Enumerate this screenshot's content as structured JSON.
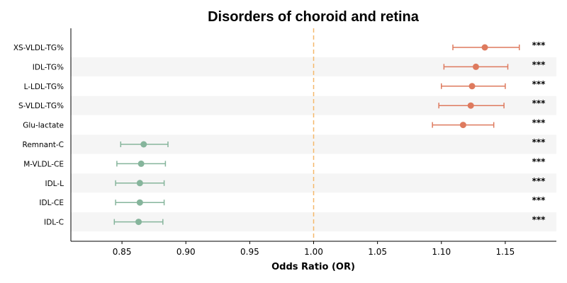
{
  "chart_data": {
    "type": "forest",
    "title": "Disorders of choroid and retina",
    "xlabel": "Odds Ratio (OR)",
    "xlim": [
      0.81,
      1.19
    ],
    "xticks": [
      "0.85",
      "0.90",
      "0.95",
      "1.00",
      "1.05",
      "1.10",
      "1.15"
    ],
    "reference_line": 1.0,
    "reference_color": "#f5b86b",
    "stripe_color": "#f5f5f5",
    "grid": false,
    "rows": [
      {
        "label": "XS-VLDL-TG%",
        "or": 1.134,
        "lower": 1.109,
        "upper": 1.161,
        "sig": "***",
        "color": "#de7a5e"
      },
      {
        "label": "IDL-TG%",
        "or": 1.127,
        "lower": 1.102,
        "upper": 1.152,
        "sig": "***",
        "color": "#de7a5e"
      },
      {
        "label": "L-LDL-TG%",
        "or": 1.124,
        "lower": 1.1,
        "upper": 1.15,
        "sig": "***",
        "color": "#de7a5e"
      },
      {
        "label": "S-VLDL-TG%",
        "or": 1.123,
        "lower": 1.098,
        "upper": 1.149,
        "sig": "***",
        "color": "#de7a5e"
      },
      {
        "label": "Glu-lactate",
        "or": 1.117,
        "lower": 1.093,
        "upper": 1.141,
        "sig": "***",
        "color": "#de7a5e"
      },
      {
        "label": "Remnant-C",
        "or": 0.867,
        "lower": 0.849,
        "upper": 0.886,
        "sig": "***",
        "color": "#86b59c"
      },
      {
        "label": "M-VLDL-CE",
        "or": 0.865,
        "lower": 0.846,
        "upper": 0.884,
        "sig": "***",
        "color": "#86b59c"
      },
      {
        "label": "IDL-L",
        "or": 0.864,
        "lower": 0.845,
        "upper": 0.883,
        "sig": "***",
        "color": "#86b59c"
      },
      {
        "label": "IDL-CE",
        "or": 0.864,
        "lower": 0.845,
        "upper": 0.883,
        "sig": "***",
        "color": "#86b59c"
      },
      {
        "label": "IDL-C",
        "or": 0.863,
        "lower": 0.844,
        "upper": 0.882,
        "sig": "***",
        "color": "#86b59c"
      }
    ]
  }
}
